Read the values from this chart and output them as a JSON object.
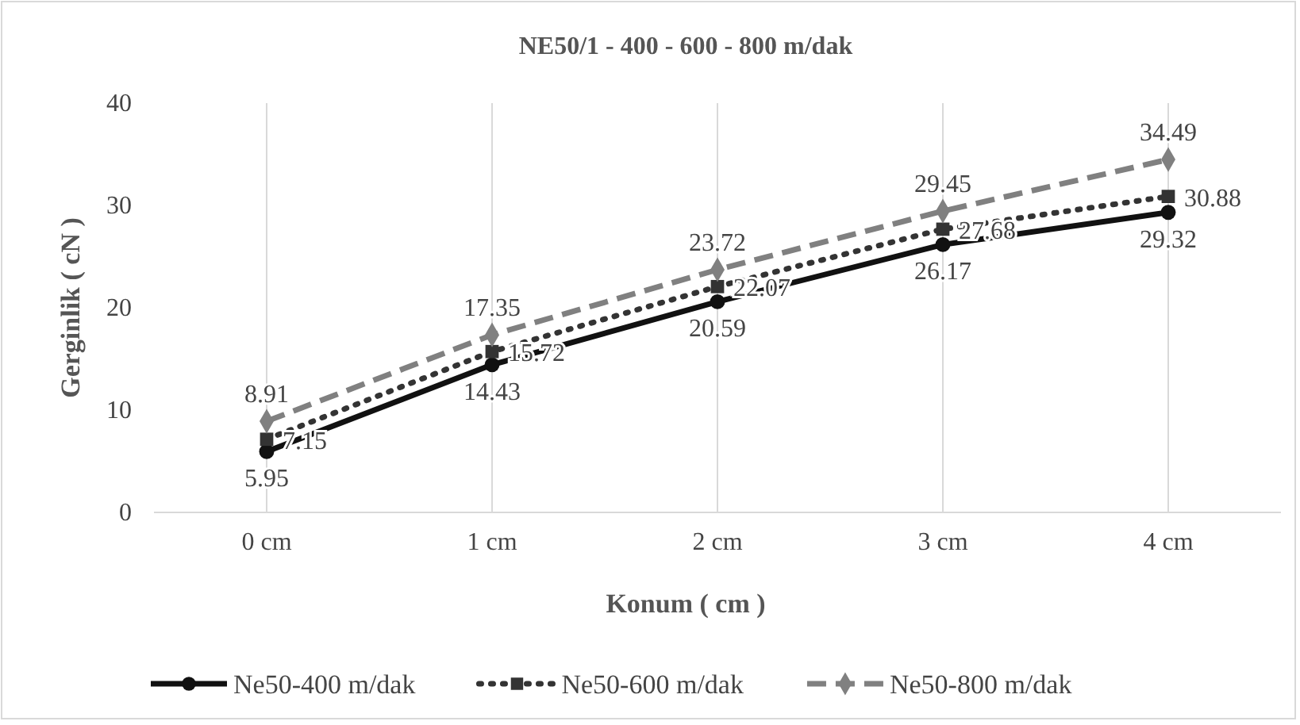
{
  "chart_data": {
    "type": "line",
    "title": "NE50/1 - 400 - 600 - 800 m/dak",
    "xlabel": "Konum ( cm )",
    "ylabel": "Gerginlik ( cN )",
    "categories": [
      "0 cm",
      "1 cm",
      "2 cm",
      "3 cm",
      "4 cm"
    ],
    "series": [
      {
        "name": "Ne50-400 m/dak",
        "color": "#111111",
        "values": [
          5.95,
          14.43,
          20.59,
          26.17,
          29.32
        ],
        "marker": "circle",
        "line_style": "solid"
      },
      {
        "name": "Ne50-600 m/dak",
        "color": "#333333",
        "values": [
          7.15,
          15.72,
          22.07,
          27.68,
          30.88
        ],
        "marker": "square",
        "line_style": "dotted"
      },
      {
        "name": "Ne50-800 m/dak",
        "color": "#808080",
        "values": [
          8.91,
          17.35,
          23.72,
          29.45,
          34.49
        ],
        "marker": "diamond",
        "line_style": "dashed"
      }
    ],
    "ylim": [
      0,
      40
    ],
    "yticks": [
      0,
      10,
      20,
      30,
      40
    ],
    "grid": "x",
    "legend": "bottom",
    "data_labels": true
  }
}
